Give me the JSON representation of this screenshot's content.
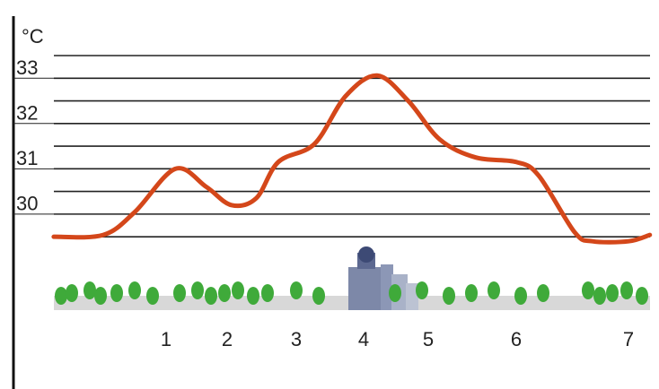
{
  "chart_data": {
    "type": "line",
    "y_unit": "°C",
    "categories": [
      "1",
      "2",
      "3",
      "4",
      "5",
      "6",
      "7"
    ],
    "x": [
      -0.84,
      -0.03,
      0.49,
      1.15,
      1.66,
      2.06,
      2.42,
      2.74,
      3.27,
      3.73,
      4.21,
      4.69,
      5.13,
      5.54,
      6.0,
      6.2,
      6.52,
      6.68,
      7.0,
      7.19
    ],
    "series": [
      {
        "color": "#d4471a",
        "values": [
          29.5,
          29.54,
          30.05,
          31.0,
          30.6,
          30.2,
          30.35,
          31.15,
          31.55,
          32.6,
          33.06,
          32.5,
          31.65,
          31.25,
          31.15,
          30.85,
          29.6,
          29.4,
          29.4,
          29.54
        ]
      }
    ],
    "ylim": [
      27.9,
      33.5
    ],
    "yticks": [
      30,
      31,
      32,
      33
    ],
    "grid_lines": [
      29.5,
      30,
      30.5,
      31,
      31.5,
      32,
      32.5,
      33,
      33.5
    ]
  }
}
